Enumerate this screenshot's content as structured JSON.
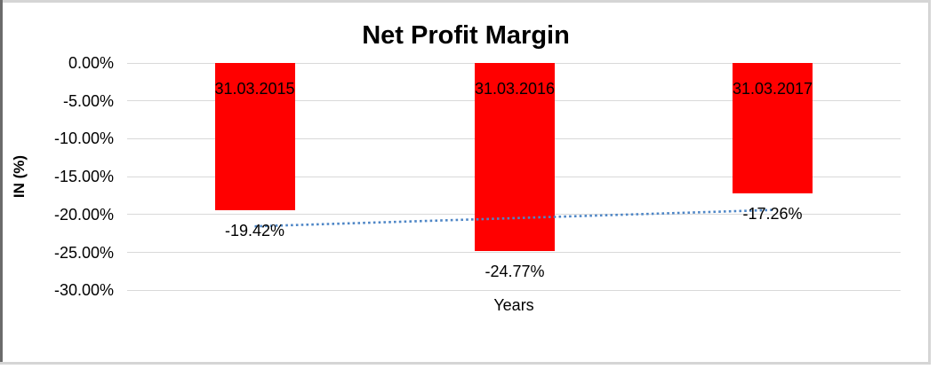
{
  "chart_data": {
    "type": "bar",
    "title": "Net Profit Margin",
    "xlabel": "Years",
    "ylabel": "IN (%)",
    "categories": [
      "31.03.2015",
      "31.03.2016",
      "31.03.2017"
    ],
    "values": [
      -19.42,
      -24.77,
      -17.26
    ],
    "value_labels": [
      "-19.42%",
      "-24.77%",
      "-17.26%"
    ],
    "y_ticks": [
      "0.00%",
      "-5.00%",
      "-10.00%",
      "-15.00%",
      "-20.00%",
      "-25.00%",
      "-30.00%"
    ],
    "y_tick_values": [
      0,
      -5,
      -10,
      -15,
      -20,
      -25,
      -30
    ],
    "ylim": [
      -30,
      0
    ],
    "grid": true,
    "legend": false,
    "bar_color": "#ff0000",
    "gridline_color": "#d9d9d9",
    "trendline": {
      "type": "linear",
      "style": "dotted",
      "color": "#4e86c6",
      "start_value": -21.56,
      "end_value": -19.4
    }
  }
}
